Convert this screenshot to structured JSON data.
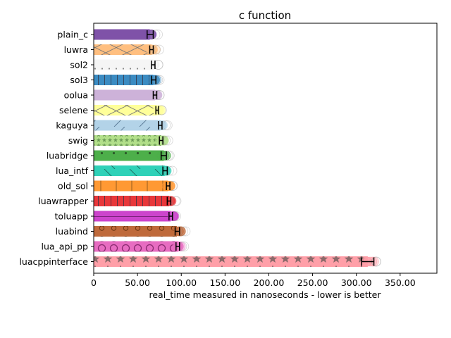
{
  "chart_data": {
    "type": "bar",
    "orientation": "horizontal",
    "title": "c function",
    "xlabel": "real_time measured in nanoseconds - lower is better",
    "ylabel": "",
    "xlim": [
      0,
      392
    ],
    "xticks": [
      0,
      50,
      100,
      150,
      200,
      250,
      300,
      350
    ],
    "xtick_labels": [
      "0",
      "50.00",
      "100.00",
      "150.00",
      "200.00",
      "250.00",
      "300.00",
      "350.00"
    ],
    "grid": false,
    "legend": "none",
    "categories": [
      "plain_c",
      "luwra",
      "sol2",
      "sol3",
      "oolua",
      "selene",
      "kaguya",
      "swig",
      "luabridge",
      "lua_intf",
      "old_sol",
      "luawrapper",
      "toluapp",
      "luabind",
      "lua_api_pp",
      "luacppinterface"
    ],
    "values": [
      64,
      66,
      68,
      68,
      70,
      72,
      76,
      77,
      80,
      81,
      85,
      86,
      88,
      95,
      96,
      313
    ],
    "error_low": [
      61,
      64,
      66,
      66,
      68,
      71,
      74,
      75,
      77,
      79,
      83,
      84,
      86,
      93,
      94,
      306
    ],
    "error_high": [
      68,
      68,
      70,
      71,
      72,
      74,
      78,
      79,
      83,
      84,
      87,
      88,
      90,
      98,
      98,
      320
    ],
    "colors": [
      "#7f52a8",
      "#ffbf80",
      "#f5f5f5",
      "#3b8bc2",
      "#cdb2d9",
      "#ffff99",
      "#b3d3e8",
      "#b2df8a",
      "#4daf4a",
      "#2fd1b8",
      "#ff9933",
      "#e8373a",
      "#cc44cc",
      "#bf6a3b",
      "#e76cc1",
      "#ff9fa8"
    ],
    "hatches": [
      "none",
      "cross",
      "dots",
      "vlines",
      "none",
      "cross",
      "slash",
      "stars",
      "bigdots",
      "backslash",
      "vlines-wide",
      "vlines",
      "hline",
      "rings",
      "bigrings",
      "bigstars"
    ]
  }
}
